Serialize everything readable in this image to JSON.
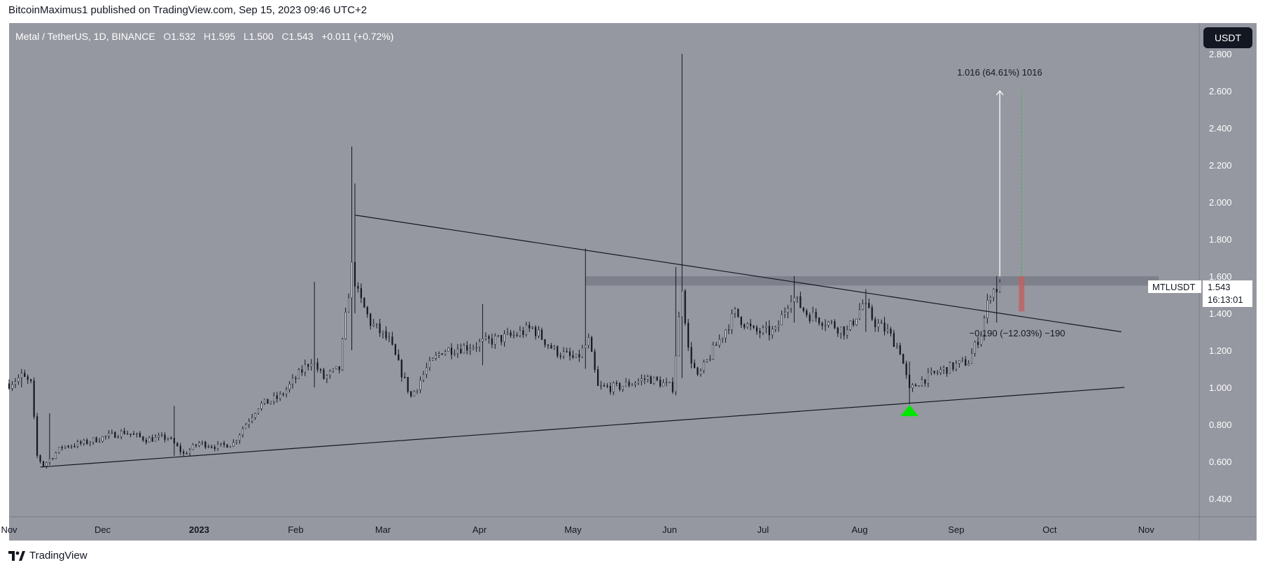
{
  "header": {
    "publisher_text": "BitcoinMaximus1 published on TradingView.com, Sep 15, 2023 09:46 UTC+2"
  },
  "legend": {
    "symbol": "Metal / TetherUS, 1D, BINANCE",
    "o_label": "O",
    "o_value": "1.532",
    "h_label": "H",
    "h_value": "1.595",
    "l_label": "L",
    "l_value": "1.500",
    "c_label": "C",
    "c_value": "1.543",
    "change": "+0.011 (+0.72%)"
  },
  "currency_button": "USDT",
  "price_tag": {
    "symbol": "MTLUSDT",
    "price": "1.543",
    "countdown": "16:13:01"
  },
  "measure": {
    "up_label": "1.016 (64.61%) 1016",
    "down_label": "−0.190 (−12.03%) −190"
  },
  "footer": {
    "brand": "TradingView"
  },
  "colors": {
    "chart_bg": "#9598a1",
    "candle_up": "#ffffff",
    "candle_down": "#131722",
    "support_marker": "#00e600",
    "target_green": "#4caf50",
    "stop_red": "#c06060"
  },
  "chart_data": {
    "type": "candlestick",
    "symbol": "MTLUSDT",
    "interval": "1D",
    "exchange": "BINANCE",
    "y_axis": {
      "range": [
        0.3,
        2.85
      ],
      "ticks": [
        "0.400",
        "0.600",
        "0.800",
        "1.000",
        "1.200",
        "1.400",
        "1.600",
        "1.800",
        "2.000",
        "2.200",
        "2.400",
        "2.600",
        "2.800"
      ]
    },
    "x_axis": {
      "range": [
        "2022-11-01",
        "2023-11-18"
      ],
      "ticks": [
        {
          "label": "Nov",
          "date": "2022-11-01",
          "bold": false
        },
        {
          "label": "Dec",
          "date": "2022-12-01",
          "bold": false
        },
        {
          "label": "2023",
          "date": "2023-01-01",
          "bold": true
        },
        {
          "label": "Feb",
          "date": "2023-02-01",
          "bold": false
        },
        {
          "label": "Mar",
          "date": "2023-03-01",
          "bold": false
        },
        {
          "label": "Apr",
          "date": "2023-04-01",
          "bold": false
        },
        {
          "label": "May",
          "date": "2023-05-01",
          "bold": false
        },
        {
          "label": "Jun",
          "date": "2023-06-01",
          "bold": false
        },
        {
          "label": "Jul",
          "date": "2023-07-01",
          "bold": false
        },
        {
          "label": "Aug",
          "date": "2023-08-01",
          "bold": false
        },
        {
          "label": "Sep",
          "date": "2023-09-01",
          "bold": false
        },
        {
          "label": "Oct",
          "date": "2023-10-01",
          "bold": false
        },
        {
          "label": "Nov",
          "date": "2023-11-01",
          "bold": false
        }
      ]
    },
    "close_path": [
      [
        "2022-11-01",
        1.02
      ],
      [
        "2022-11-05",
        1.06
      ],
      [
        "2022-11-08",
        1.02
      ],
      [
        "2022-11-10",
        0.63
      ],
      [
        "2022-11-12",
        0.58
      ],
      [
        "2022-11-18",
        0.68
      ],
      [
        "2022-11-25",
        0.7
      ],
      [
        "2022-12-01",
        0.73
      ],
      [
        "2022-12-08",
        0.76
      ],
      [
        "2022-12-15",
        0.72
      ],
      [
        "2022-12-22",
        0.73
      ],
      [
        "2022-12-27",
        0.64
      ],
      [
        "2023-01-01",
        0.7
      ],
      [
        "2023-01-07",
        0.68
      ],
      [
        "2023-01-12",
        0.7
      ],
      [
        "2023-01-15",
        0.78
      ],
      [
        "2023-01-20",
        0.9
      ],
      [
        "2023-01-27",
        0.95
      ],
      [
        "2023-02-01",
        1.05
      ],
      [
        "2023-02-06",
        1.15
      ],
      [
        "2023-02-10",
        1.05
      ],
      [
        "2023-02-15",
        1.1
      ],
      [
        "2023-02-19",
        1.65
      ],
      [
        "2023-02-21",
        1.5
      ],
      [
        "2023-02-25",
        1.35
      ],
      [
        "2023-03-03",
        1.25
      ],
      [
        "2023-03-10",
        0.95
      ],
      [
        "2023-03-15",
        1.1
      ],
      [
        "2023-03-20",
        1.2
      ],
      [
        "2023-03-28",
        1.22
      ],
      [
        "2023-04-04",
        1.25
      ],
      [
        "2023-04-12",
        1.28
      ],
      [
        "2023-04-18",
        1.32
      ],
      [
        "2023-04-25",
        1.2
      ],
      [
        "2023-05-02",
        1.15
      ],
      [
        "2023-05-06",
        1.25
      ],
      [
        "2023-05-09",
        1.0
      ],
      [
        "2023-05-15",
        1.0
      ],
      [
        "2023-05-25",
        1.05
      ],
      [
        "2023-06-02",
        1.0
      ],
      [
        "2023-06-05",
        1.55
      ],
      [
        "2023-06-07",
        1.2
      ],
      [
        "2023-06-10",
        1.05
      ],
      [
        "2023-06-15",
        1.2
      ],
      [
        "2023-06-22",
        1.4
      ],
      [
        "2023-06-28",
        1.3
      ],
      [
        "2023-07-05",
        1.3
      ],
      [
        "2023-07-10",
        1.5
      ],
      [
        "2023-07-15",
        1.4
      ],
      [
        "2023-07-22",
        1.35
      ],
      [
        "2023-07-28",
        1.3
      ],
      [
        "2023-08-02",
        1.45
      ],
      [
        "2023-08-06",
        1.35
      ],
      [
        "2023-08-10",
        1.3
      ],
      [
        "2023-08-14",
        1.2
      ],
      [
        "2023-08-17",
        0.98
      ],
      [
        "2023-08-20",
        1.03
      ],
      [
        "2023-08-27",
        1.09
      ],
      [
        "2023-09-01",
        1.12
      ],
      [
        "2023-09-05",
        1.14
      ],
      [
        "2023-09-09",
        1.3
      ],
      [
        "2023-09-12",
        1.52
      ],
      [
        "2023-09-15",
        1.543
      ]
    ],
    "spikes": [
      {
        "date": "2022-11-05",
        "high": 1.1,
        "low": 1.0
      },
      {
        "date": "2022-11-14",
        "high": 0.86,
        "low": 0.62
      },
      {
        "date": "2022-12-24",
        "high": 0.9,
        "low": 0.63
      },
      {
        "date": "2023-02-07",
        "high": 1.57,
        "low": 1.0
      },
      {
        "date": "2023-02-19",
        "high": 2.3,
        "low": 1.2
      },
      {
        "date": "2023-02-20",
        "high": 2.1,
        "low": 1.4
      },
      {
        "date": "2023-04-02",
        "high": 1.45,
        "low": 1.12
      },
      {
        "date": "2023-05-05",
        "high": 1.75,
        "low": 1.1
      },
      {
        "date": "2023-06-05",
        "high": 2.8,
        "low": 1.05
      },
      {
        "date": "2023-06-03",
        "high": 1.65,
        "low": 0.98
      },
      {
        "date": "2023-07-11",
        "high": 1.6,
        "low": 1.35
      },
      {
        "date": "2023-08-03",
        "high": 1.53,
        "low": 1.3
      },
      {
        "date": "2023-08-17",
        "high": 1.14,
        "low": 0.91
      },
      {
        "date": "2023-09-14",
        "high": 1.6,
        "low": 1.35
      }
    ],
    "lines": [
      {
        "name": "descending resistance",
        "from": [
          "2023-02-20",
          1.93
        ],
        "to": [
          "2023-10-24",
          1.3
        ]
      },
      {
        "name": "ascending support",
        "from": [
          "2022-11-11",
          0.57
        ],
        "to": [
          "2023-10-25",
          1.0
        ]
      }
    ],
    "horizontal_zone": {
      "from": "2023-05-05",
      "to": "2023-11-05",
      "low": 1.55,
      "high": 1.6
    },
    "measure_up": {
      "date": "2023-09-15",
      "from": 1.6,
      "to": 2.6
    },
    "measure_target": {
      "date": "2023-09-22",
      "from": 1.6,
      "to": 2.6
    },
    "measure_stop": {
      "date": "2023-09-22",
      "from": 1.6,
      "to": 1.41
    },
    "support_marker_date": "2023-08-17",
    "support_marker_value": 0.89
  }
}
